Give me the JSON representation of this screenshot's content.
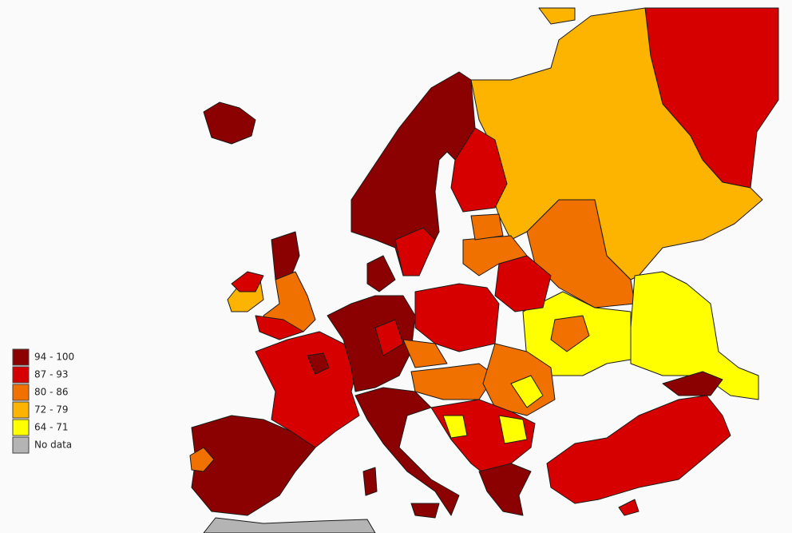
{
  "legend": {
    "items": [
      {
        "label": "94 - 100",
        "color": "#8b0000"
      },
      {
        "label": "87 - 93",
        "color": "#d60000"
      },
      {
        "label": "80 - 86",
        "color": "#f07000"
      },
      {
        "label": "72 - 79",
        "color": "#fcb400"
      },
      {
        "label": "64 - 71",
        "color": "#ffff00"
      },
      {
        "label": "No data",
        "color": "#b4b4b4"
      }
    ]
  }
}
